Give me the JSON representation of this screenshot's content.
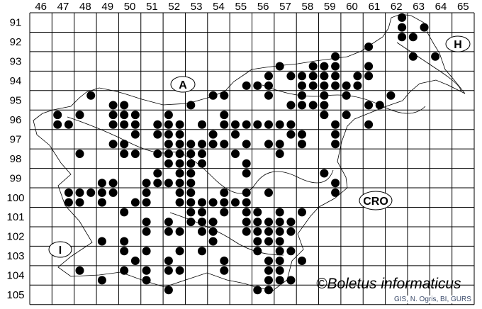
{
  "map": {
    "columns": [
      "46",
      "47",
      "48",
      "49",
      "50",
      "51",
      "52",
      "53",
      "54",
      "55",
      "56",
      "57",
      "58",
      "59",
      "60",
      "61",
      "62",
      "63",
      "64",
      "65"
    ],
    "rows": [
      "91",
      "92",
      "93",
      "94",
      "95",
      "96",
      "97",
      "98",
      "99",
      "100",
      "101",
      "102",
      "103",
      "104",
      "105"
    ],
    "country_labels": {
      "austria": "A",
      "hungary": "H",
      "croatia": "CRO",
      "italy": "I"
    },
    "copyright": "©Boletus informaticus",
    "credit": "GIS, N. Ogris, BI, GURS",
    "dot_color": "#000000",
    "records": [
      [
        48,
        95,
        "NE"
      ],
      [
        55,
        94,
        "SE"
      ],
      [
        54,
        95,
        "NW"
      ],
      [
        54,
        95,
        "NE"
      ],
      [
        49,
        95,
        "SE"
      ],
      [
        50,
        95,
        "SW"
      ],
      [
        53,
        95,
        "SW"
      ],
      [
        47,
        96,
        "NW"
      ],
      [
        48,
        96,
        "NW"
      ],
      [
        47,
        96,
        "SW"
      ],
      [
        47,
        96,
        "SE"
      ],
      [
        49,
        96,
        "NE"
      ],
      [
        50,
        96,
        "NW"
      ],
      [
        50,
        96,
        "NE"
      ],
      [
        49,
        96,
        "SE"
      ],
      [
        50,
        96,
        "SW"
      ],
      [
        50,
        96,
        "SE"
      ],
      [
        52,
        96,
        "NW"
      ],
      [
        51,
        96,
        "SE"
      ],
      [
        52,
        96,
        "SW"
      ],
      [
        52,
        96,
        "SE"
      ],
      [
        53,
        96,
        "SE"
      ],
      [
        54,
        96,
        "NE"
      ],
      [
        54,
        96,
        "SE"
      ],
      [
        55,
        96,
        "SW"
      ],
      [
        55,
        96,
        "SE"
      ],
      [
        50,
        97,
        "NE"
      ],
      [
        51,
        97,
        "NE"
      ],
      [
        52,
        97,
        "NW"
      ],
      [
        52,
        97,
        "NE"
      ],
      [
        54,
        97,
        "NW"
      ],
      [
        55,
        97,
        "NW"
      ],
      [
        49,
        97,
        "SE"
      ],
      [
        50,
        97,
        "SW"
      ],
      [
        52,
        97,
        "SW"
      ],
      [
        52,
        97,
        "SE"
      ],
      [
        53,
        97,
        "SW"
      ],
      [
        53,
        97,
        "SE"
      ],
      [
        54,
        97,
        "SW"
      ],
      [
        54,
        97,
        "SE"
      ],
      [
        55,
        97,
        "SE"
      ],
      [
        48,
        98,
        "NW"
      ],
      [
        50,
        98,
        "NW"
      ],
      [
        50,
        98,
        "NE"
      ],
      [
        51,
        98,
        "NE"
      ],
      [
        52,
        98,
        "NW"
      ],
      [
        52,
        98,
        "NE"
      ],
      [
        53,
        98,
        "NW"
      ],
      [
        53,
        98,
        "NE"
      ],
      [
        55,
        98,
        "NW"
      ],
      [
        52,
        98,
        "SW"
      ],
      [
        52,
        98,
        "SE"
      ],
      [
        53,
        98,
        "SW"
      ],
      [
        53,
        98,
        "SE"
      ],
      [
        55,
        98,
        "SE"
      ],
      [
        51,
        99,
        "NE"
      ],
      [
        52,
        99,
        "NE"
      ],
      [
        53,
        99,
        "NW"
      ],
      [
        55,
        99,
        "NE"
      ],
      [
        49,
        99,
        "SW"
      ],
      [
        49,
        99,
        "SE"
      ],
      [
        51,
        99,
        "SW"
      ],
      [
        51,
        99,
        "SE"
      ],
      [
        52,
        99,
        "SW"
      ],
      [
        52,
        99,
        "SE"
      ],
      [
        53,
        99,
        "SW"
      ],
      [
        47,
        100,
        "NE"
      ],
      [
        48,
        100,
        "NW"
      ],
      [
        48,
        100,
        "NE"
      ],
      [
        49,
        100,
        "NW"
      ],
      [
        49,
        100,
        "NE"
      ],
      [
        51,
        100,
        "NW"
      ],
      [
        52,
        100,
        "NE"
      ],
      [
        53,
        100,
        "NW"
      ],
      [
        54,
        100,
        "NE"
      ],
      [
        55,
        100,
        "NE"
      ],
      [
        47,
        100,
        "SE"
      ],
      [
        48,
        100,
        "SW"
      ],
      [
        49,
        100,
        "SW"
      ],
      [
        50,
        100,
        "SE"
      ],
      [
        51,
        100,
        "SW"
      ],
      [
        52,
        100,
        "SE"
      ],
      [
        53,
        100,
        "SW"
      ],
      [
        53,
        100,
        "SE"
      ],
      [
        54,
        100,
        "SW"
      ],
      [
        54,
        100,
        "SE"
      ],
      [
        55,
        100,
        "SW"
      ],
      [
        55,
        100,
        "SE"
      ],
      [
        50,
        101,
        "NW"
      ],
      [
        53,
        101,
        "NW"
      ],
      [
        53,
        101,
        "NE"
      ],
      [
        54,
        101,
        "NE"
      ],
      [
        55,
        101,
        "NE"
      ],
      [
        51,
        101,
        "SW"
      ],
      [
        52,
        101,
        "SW"
      ],
      [
        53,
        101,
        "SW"
      ],
      [
        53,
        101,
        "SE"
      ],
      [
        54,
        101,
        "SW"
      ],
      [
        55,
        101,
        "SE"
      ],
      [
        51,
        102,
        "NW"
      ],
      [
        52,
        102,
        "NW"
      ],
      [
        52,
        102,
        "NE"
      ],
      [
        53,
        102,
        "NE"
      ],
      [
        54,
        102,
        "NW"
      ],
      [
        55,
        102,
        "NE"
      ],
      [
        49,
        102,
        "SW"
      ],
      [
        50,
        102,
        "SW"
      ],
      [
        54,
        102,
        "SW"
      ],
      [
        50,
        103,
        "NW"
      ],
      [
        51,
        103,
        "NW"
      ],
      [
        52,
        103,
        "NE"
      ],
      [
        53,
        103,
        "NE"
      ],
      [
        50,
        103,
        "SE"
      ],
      [
        52,
        103,
        "SW"
      ],
      [
        54,
        103,
        "SE"
      ],
      [
        48,
        104,
        "NW"
      ],
      [
        50,
        104,
        "NW"
      ],
      [
        51,
        104,
        "NW"
      ],
      [
        52,
        104,
        "NW"
      ],
      [
        52,
        104,
        "NE"
      ],
      [
        54,
        104,
        "NE"
      ],
      [
        49,
        104,
        "SW"
      ],
      [
        51,
        104,
        "SW"
      ],
      [
        52,
        105,
        "NW"
      ],
      [
        62,
        91,
        "NE"
      ],
      [
        62,
        91,
        "SE"
      ],
      [
        63,
        91,
        "SE"
      ],
      [
        62,
        92,
        "NE"
      ],
      [
        63,
        92,
        "NW"
      ],
      [
        61,
        92,
        "SW"
      ],
      [
        63,
        93,
        "NW"
      ],
      [
        64,
        93,
        "NW"
      ],
      [
        59,
        93,
        "NE"
      ],
      [
        57,
        93,
        "SW"
      ],
      [
        58,
        93,
        "SE"
      ],
      [
        59,
        93,
        "SW"
      ],
      [
        59,
        93,
        "SE"
      ],
      [
        61,
        93,
        "SW"
      ],
      [
        56,
        94,
        "NE"
      ],
      [
        57,
        94,
        "NE"
      ],
      [
        58,
        94,
        "NW"
      ],
      [
        58,
        94,
        "NE"
      ],
      [
        59,
        94,
        "NW"
      ],
      [
        59,
        94,
        "NE"
      ],
      [
        60,
        94,
        "NE"
      ],
      [
        61,
        94,
        "NW"
      ],
      [
        56,
        94,
        "SW"
      ],
      [
        56,
        94,
        "SE"
      ],
      [
        58,
        94,
        "SW"
      ],
      [
        58,
        94,
        "SE"
      ],
      [
        59,
        94,
        "SW"
      ],
      [
        59,
        94,
        "SE"
      ],
      [
        60,
        94,
        "SW"
      ],
      [
        60,
        94,
        "SE"
      ],
      [
        56,
        95,
        "NE"
      ],
      [
        58,
        95,
        "NW"
      ],
      [
        59,
        95,
        "NW"
      ],
      [
        60,
        95,
        "NW"
      ],
      [
        62,
        95,
        "NW"
      ],
      [
        57,
        95,
        "SE"
      ],
      [
        58,
        95,
        "SW"
      ],
      [
        58,
        95,
        "SE"
      ],
      [
        59,
        95,
        "SW"
      ],
      [
        61,
        95,
        "SW"
      ],
      [
        61,
        95,
        "SE"
      ],
      [
        59,
        96,
        "NW"
      ],
      [
        60,
        96,
        "NW"
      ],
      [
        56,
        96,
        "SW"
      ],
      [
        56,
        96,
        "SE"
      ],
      [
        57,
        96,
        "SW"
      ],
      [
        57,
        96,
        "SE"
      ],
      [
        59,
        96,
        "SE"
      ],
      [
        61,
        96,
        "SW"
      ],
      [
        57,
        97,
        "NE"
      ],
      [
        58,
        97,
        "NW"
      ],
      [
        59,
        97,
        "NE"
      ],
      [
        56,
        97,
        "SE"
      ],
      [
        57,
        97,
        "SW"
      ],
      [
        58,
        97,
        "SW"
      ],
      [
        59,
        97,
        "SE"
      ],
      [
        57,
        98,
        "NW"
      ],
      [
        59,
        99,
        "NW"
      ],
      [
        59,
        99,
        "SE"
      ],
      [
        56,
        100,
        "NE"
      ],
      [
        59,
        100,
        "NE"
      ],
      [
        56,
        101,
        "NW"
      ],
      [
        57,
        101,
        "NW"
      ],
      [
        58,
        101,
        "NW"
      ],
      [
        56,
        101,
        "SW"
      ],
      [
        56,
        101,
        "SE"
      ],
      [
        57,
        101,
        "SW"
      ],
      [
        57,
        101,
        "SE"
      ],
      [
        56,
        102,
        "NW"
      ],
      [
        56,
        102,
        "NE"
      ],
      [
        57,
        102,
        "NW"
      ],
      [
        57,
        102,
        "NE"
      ],
      [
        56,
        102,
        "SW"
      ],
      [
        56,
        102,
        "SE"
      ],
      [
        57,
        102,
        "SW"
      ],
      [
        56,
        103,
        "NW"
      ],
      [
        57,
        103,
        "NW"
      ],
      [
        57,
        103,
        "NE"
      ],
      [
        56,
        103,
        "SE"
      ],
      [
        57,
        103,
        "SW"
      ],
      [
        58,
        103,
        "SW"
      ],
      [
        56,
        104,
        "NE"
      ],
      [
        57,
        104,
        "NW"
      ],
      [
        56,
        104,
        "SE"
      ],
      [
        57,
        104,
        "SW"
      ],
      [
        57,
        104,
        "SE"
      ],
      [
        56,
        105,
        "NW"
      ],
      [
        56,
        105,
        "NE"
      ]
    ]
  }
}
